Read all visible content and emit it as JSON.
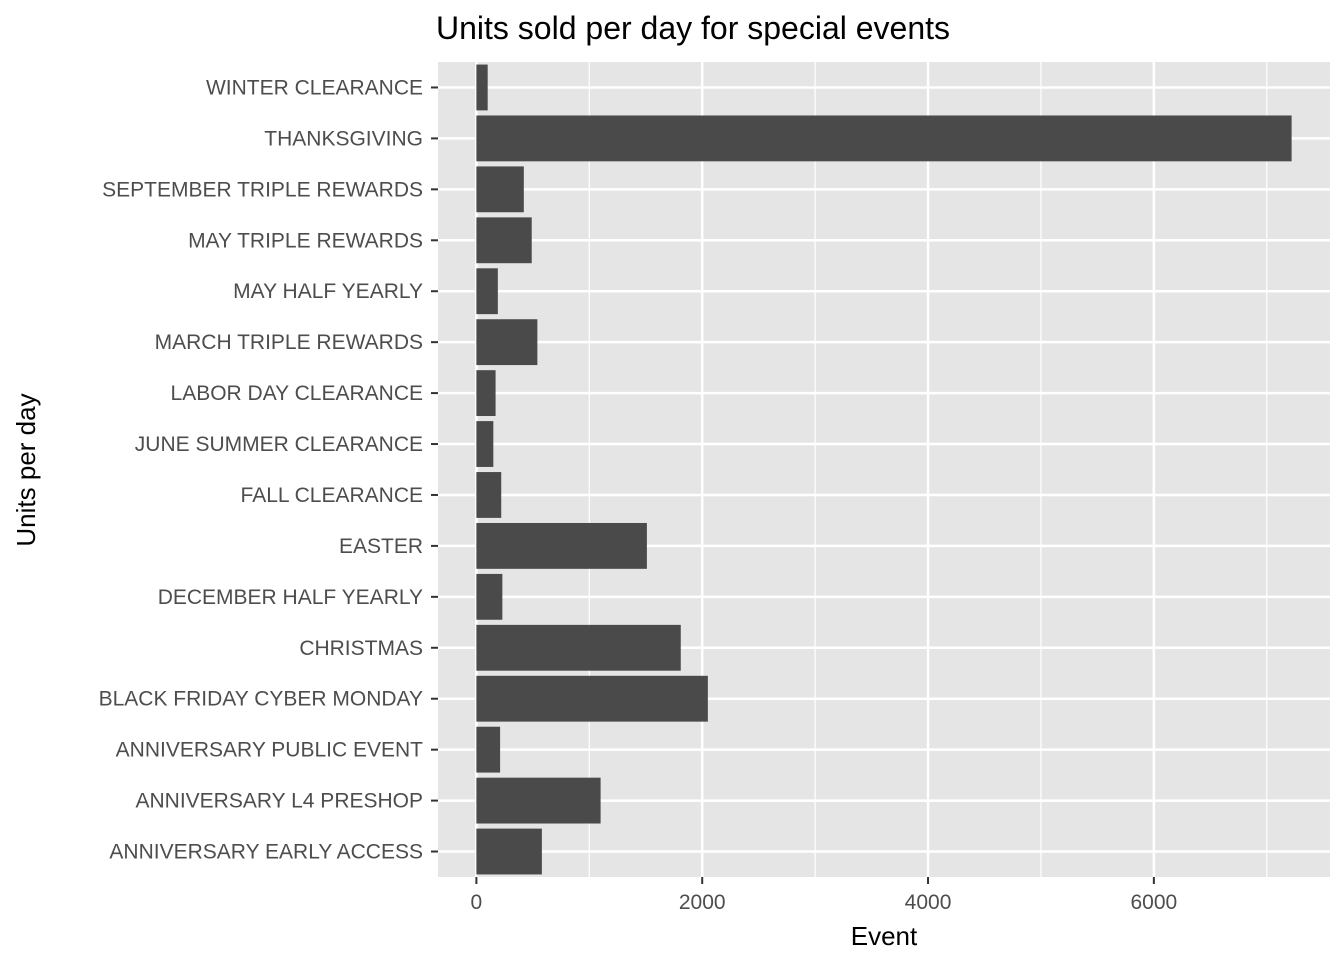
{
  "chart_data": {
    "type": "bar",
    "orientation": "horizontal",
    "title": "Units sold per day for special events",
    "xlabel": "Event",
    "ylabel": "Units per day",
    "categories": [
      "WINTER CLEARANCE",
      "THANKSGIVING",
      "SEPTEMBER TRIPLE REWARDS",
      "MAY TRIPLE REWARDS",
      "MAY HALF YEARLY",
      "MARCH TRIPLE REWARDS",
      "LABOR DAY CLEARANCE",
      "JUNE SUMMER CLEARANCE",
      "FALL CLEARANCE",
      "EASTER",
      "DECEMBER HALF YEARLY",
      "CHRISTMAS",
      "BLACK FRIDAY CYBER MONDAY",
      "ANNIVERSARY PUBLIC EVENT",
      "ANNIVERSARY L4 PRESHOP",
      "ANNIVERSARY EARLY ACCESS"
    ],
    "values": [
      100,
      7220,
      420,
      490,
      190,
      540,
      170,
      150,
      220,
      1510,
      230,
      1810,
      2050,
      210,
      1100,
      580
    ],
    "xlim": [
      -340,
      7560
    ],
    "xticks": [
      0,
      2000,
      4000,
      6000
    ],
    "xtick_labels": [
      "0",
      "2000",
      "4000",
      "6000"
    ],
    "minor_xticks": [
      1000,
      3000,
      5000,
      7000
    ],
    "grid": true,
    "colors": {
      "bar": "#4a4a4a",
      "panel": "#e5e5e5",
      "gridline": "#ffffff",
      "tick_text": "#4d4d4d"
    }
  }
}
